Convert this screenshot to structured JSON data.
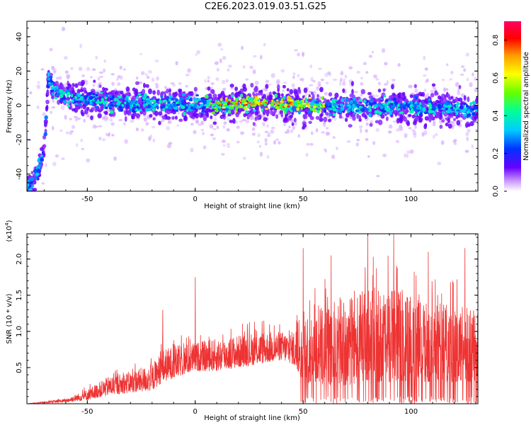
{
  "title": "C2E6.2023.019.03.51.G25",
  "chart_data": [
    {
      "type": "heatmap",
      "xlabel": "Height of straight line (km)",
      "ylabel": "Frequency (Hz)",
      "xlim": [
        -78,
        131
      ],
      "ylim": [
        -50,
        49
      ],
      "x_ticks": [
        -50,
        0,
        50,
        100
      ],
      "y_ticks": [
        -40,
        -20,
        0,
        20,
        40
      ],
      "ridge": {
        "x": [
          -78,
          -74,
          -72,
          -70,
          -68,
          -66,
          -63,
          -60,
          -55,
          -50,
          -40,
          -30,
          -20,
          -10,
          0,
          10,
          20,
          30,
          40,
          50,
          60,
          70,
          80,
          90,
          100,
          110,
          120,
          131
        ],
        "y": [
          -48,
          -42,
          -35,
          -26,
          15,
          10,
          7,
          5,
          4,
          3,
          2,
          1,
          1,
          1,
          0.5,
          0.5,
          1,
          1,
          1,
          0.5,
          0,
          0,
          -0.5,
          -1,
          -1,
          -1.5,
          -2,
          -3
        ]
      },
      "colorbar": {
        "label": "Normalized spectral amplitude",
        "range": [
          0,
          0.9
        ],
        "ticks": [
          "0.0",
          "0.2",
          "0.4",
          "0.6",
          "0.8"
        ]
      },
      "grid": false
    },
    {
      "type": "line",
      "xlabel": "Height of straight line (km)",
      "ylabel": "SNR (10 * v/v)",
      "y_multiplier_label": "(x10^4)",
      "xlim": [
        -78,
        131
      ],
      "ylim": [
        0,
        2.35
      ],
      "x_ticks": [
        -50,
        0,
        50,
        100
      ],
      "y_ticks": [
        "0.5",
        "1.0",
        "1.5",
        "2.0"
      ],
      "color": "#ee3333",
      "series": [
        {
          "envelope": {
            "x": [
              -78,
              -70,
              -60,
              -50,
              -40,
              -30,
              -20,
              -15,
              -10,
              0,
              10,
              20,
              30,
              40,
              45,
              50,
              60,
              70,
              80,
              90,
              100,
              110,
              120,
              131
            ],
            "base": [
              0.0,
              0.01,
              0.02,
              0.05,
              0.12,
              0.15,
              0.18,
              0.3,
              0.35,
              0.45,
              0.45,
              0.5,
              0.55,
              0.6,
              0.55,
              0.3,
              0.25,
              0.25,
              0.3,
              0.3,
              0.3,
              0.3,
              0.3,
              0.3
            ],
            "top": [
              0.0,
              0.03,
              0.07,
              0.2,
              0.38,
              0.45,
              0.55,
              0.75,
              0.8,
              0.85,
              0.9,
              0.95,
              1.0,
              1.0,
              1.0,
              1.2,
              1.4,
              1.5,
              1.6,
              1.6,
              1.5,
              1.4,
              1.4,
              1.3
            ]
          },
          "peaks": [
            {
              "x": -15,
              "y": 1.3
            },
            {
              "x": 0,
              "y": 1.75
            },
            {
              "x": 50,
              "y": 2.15
            },
            {
              "x": 63,
              "y": 2.05
            },
            {
              "x": 80,
              "y": 2.35
            },
            {
              "x": 92,
              "y": 2.35
            },
            {
              "x": 108,
              "y": 2.1
            },
            {
              "x": 125,
              "y": 2.15
            }
          ]
        }
      ]
    }
  ]
}
